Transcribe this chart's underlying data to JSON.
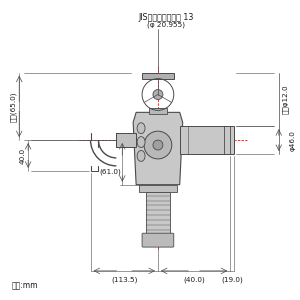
{
  "bg_color": "#ffffff",
  "line_color": "#4a4a4a",
  "dim_color": "#4a4a4a",
  "text_color": "#1a1a1a",
  "fig_width": 3.0,
  "fig_height": 3.0,
  "dpi": 100,
  "annotations": {
    "top_label1": "JIS給水栓取付ねじ 13",
    "top_label2": "(φ 20.955)",
    "left_max": "最大(65.0)",
    "left_40": "40.0",
    "left_61": "(61.0)",
    "bottom_113": "(113.5)",
    "bottom_40": "(40.0)",
    "right_19": "(19.0)",
    "right_phi12": "内径φ12.0",
    "right_46": "φ46.0",
    "unit": "単位:mm"
  }
}
